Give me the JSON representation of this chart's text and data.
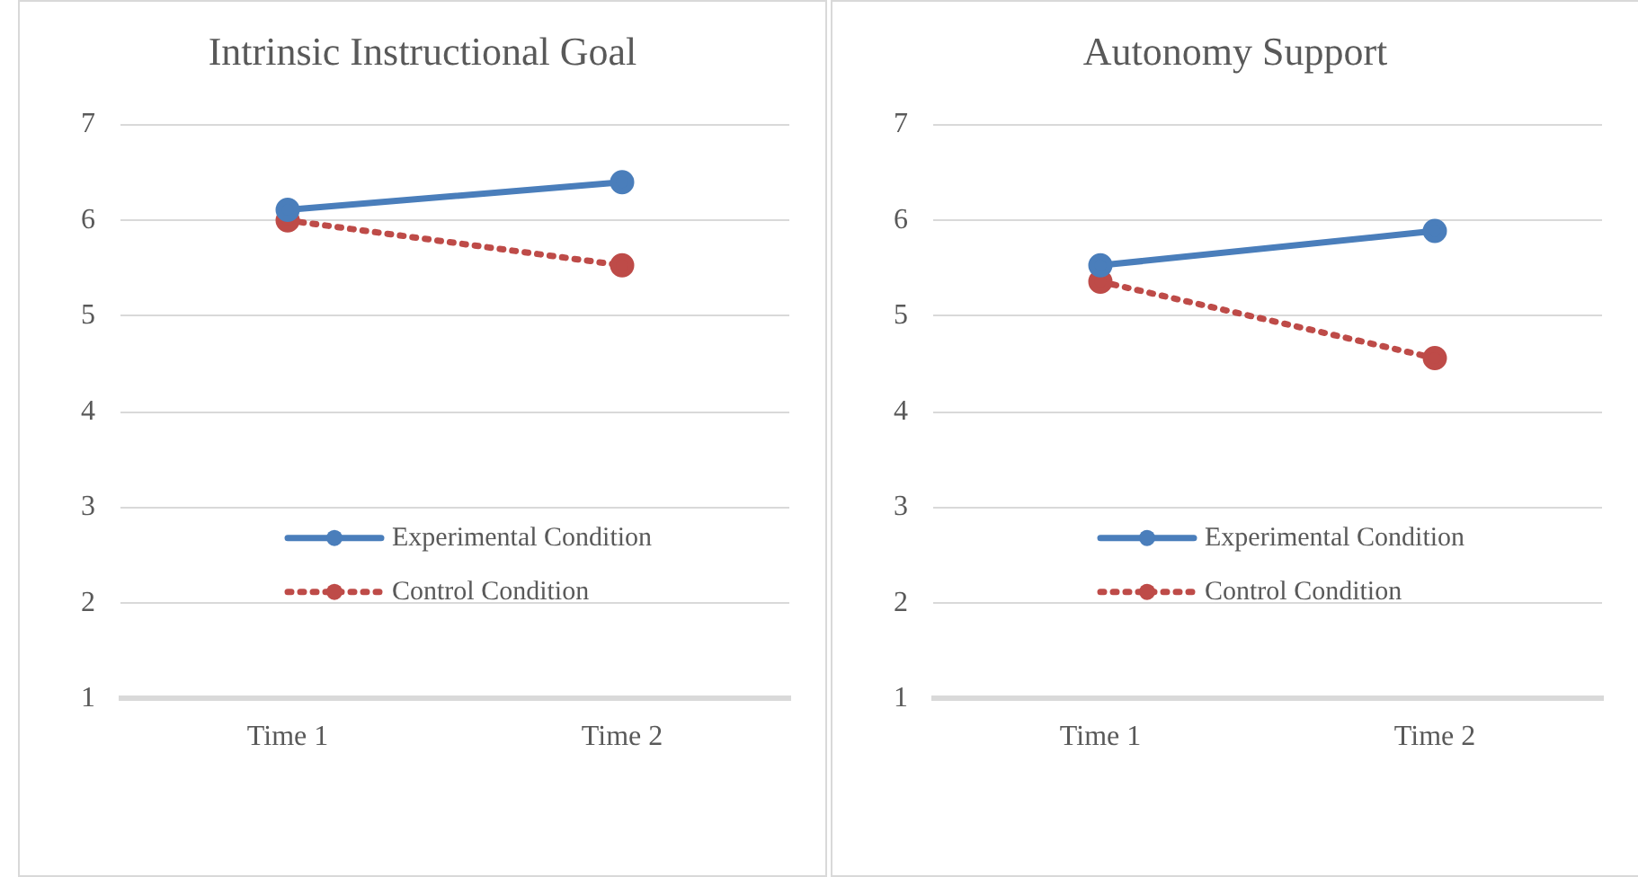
{
  "chart_data": [
    {
      "type": "line",
      "title": "Intrinsic Instructional Goal",
      "categories": [
        "Time 1",
        "Time 2"
      ],
      "series": [
        {
          "name": "Experimental Condition",
          "color": "#4a7ebb",
          "values": [
            6.11,
            6.4
          ],
          "line_style": "solid"
        },
        {
          "name": "Control Condition",
          "color": "#be4b48",
          "values": [
            6.0,
            5.53
          ],
          "line_style": "dotted"
        }
      ],
      "ylim": [
        1,
        7
      ],
      "yticks": [
        1,
        2,
        3,
        4,
        5,
        6,
        7
      ],
      "grid": "y",
      "legend": "bottom",
      "marker": "circle"
    },
    {
      "type": "line",
      "title": "Autonomy Support",
      "categories": [
        "Time 1",
        "Time 2"
      ],
      "series": [
        {
          "name": "Experimental Condition",
          "color": "#4a7ebb",
          "values": [
            5.53,
            5.89
          ],
          "line_style": "solid"
        },
        {
          "name": "Control Condition",
          "color": "#be4b48",
          "values": [
            5.36,
            4.56
          ],
          "line_style": "dotted"
        }
      ],
      "ylim": [
        1,
        7
      ],
      "yticks": [
        1,
        2,
        3,
        4,
        5,
        6,
        7
      ],
      "grid": "y",
      "legend": "bottom",
      "marker": "circle"
    }
  ]
}
